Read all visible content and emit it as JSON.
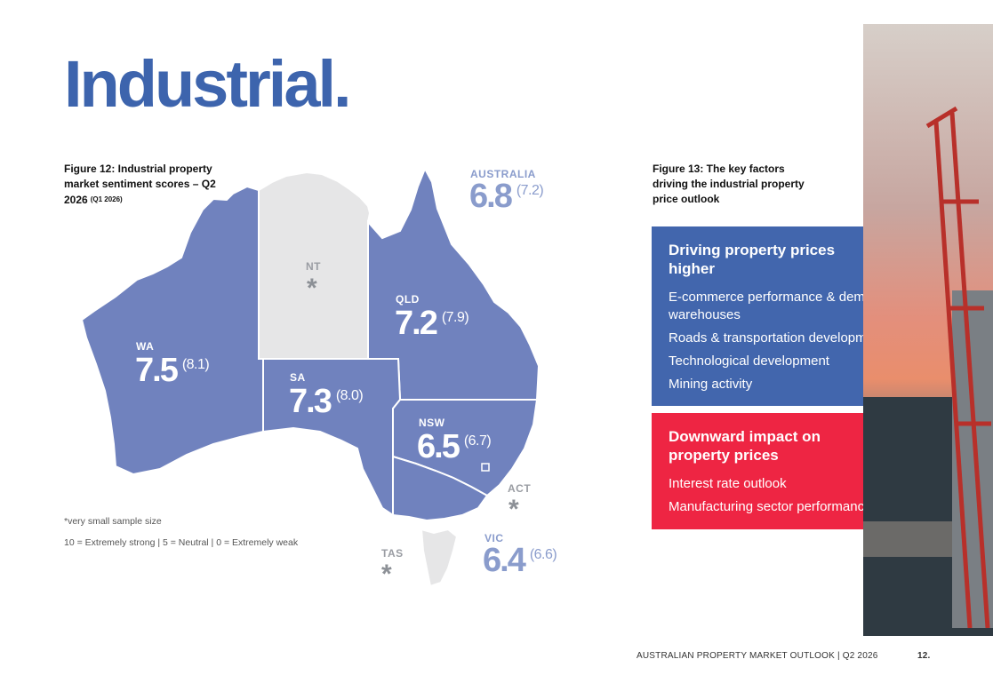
{
  "title": "Industrial.",
  "figure12": {
    "caption": "Figure 12: Industrial property market sentiment scores – Q2 2026",
    "caption_sub": "(Q1 2026)"
  },
  "figure13": {
    "caption": "Figure 13: The key factors driving the industrial property price outlook"
  },
  "map": {
    "colors": {
      "state_fill": "#7082be",
      "nt_fill": "#e6e6e7",
      "border": "#ffffff",
      "score_blue": "#8a9ccc"
    },
    "australia": {
      "label": "AUSTRALIA",
      "score": "6.8",
      "previous": "(7.2)"
    },
    "states": {
      "wa": {
        "label": "WA",
        "score": "7.5",
        "previous": "(8.1)"
      },
      "nt": {
        "label": "NT",
        "marker": "*"
      },
      "qld": {
        "label": "QLD",
        "score": "7.2",
        "previous": "(7.9)"
      },
      "sa": {
        "label": "SA",
        "score": "7.3",
        "previous": "(8.0)"
      },
      "nsw": {
        "label": "NSW",
        "score": "6.5",
        "previous": "(6.7)"
      },
      "act": {
        "label": "ACT",
        "marker": "*"
      },
      "vic": {
        "label": "VIC",
        "score": "6.4",
        "previous": "(6.6)"
      },
      "tas": {
        "label": "TAS",
        "marker": "*"
      }
    }
  },
  "notes": {
    "sample": "*very small sample size",
    "scale": "10 = Extremely strong | 5 = Neutral | 0 = Extremely weak"
  },
  "factors": {
    "up": {
      "color": "#4266ad",
      "heading": "Driving property prices higher",
      "items": [
        "E-commerce performance & demand for warehouses",
        "Roads & transportation development",
        "Technological development",
        "Mining activity"
      ]
    },
    "down": {
      "color": "#ee2543",
      "heading": "Downward impact on property prices",
      "items": [
        "Interest rate outlook",
        "Manufacturing sector performance"
      ]
    }
  },
  "photo": {
    "description_icon": "port-crane-photo"
  },
  "footer": {
    "publication": "AUSTRALIAN PROPERTY MARKET OUTLOOK | Q2 2026",
    "page_number": "12."
  }
}
